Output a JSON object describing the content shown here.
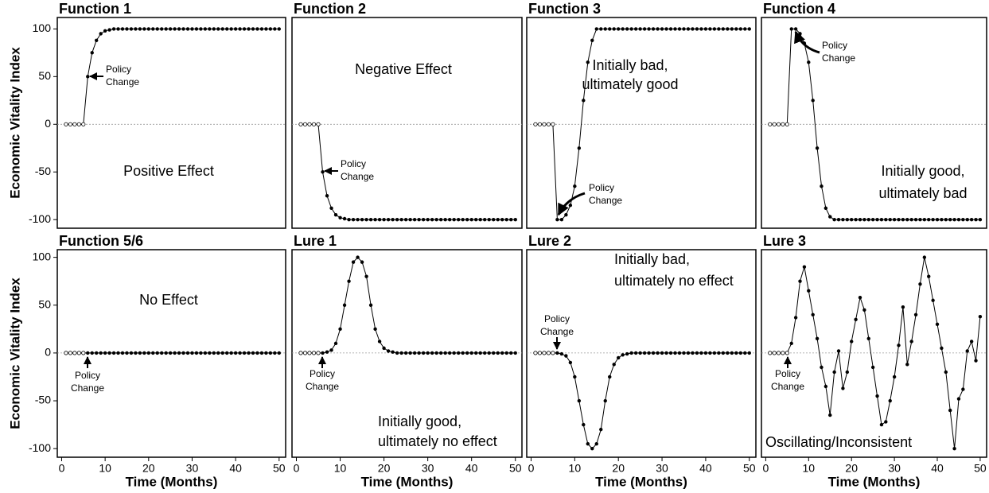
{
  "chart_data": [
    {
      "type": "line",
      "title": "Function 1",
      "ylabel": "Economic Vitality Index",
      "annotation": [
        "Positive Effect"
      ],
      "policy_label": [
        "Policy",
        "Change"
      ],
      "open_markers": 5,
      "x": [
        1,
        2,
        3,
        4,
        5,
        6,
        7,
        8,
        9,
        10,
        11,
        12,
        13,
        14,
        15,
        16,
        17,
        18,
        19,
        20,
        21,
        22,
        23,
        24,
        25,
        26,
        27,
        28,
        29,
        30,
        31,
        32,
        33,
        34,
        35,
        36,
        37,
        38,
        39,
        40,
        41,
        42,
        43,
        44,
        45,
        46,
        47,
        48,
        49,
        50
      ],
      "values": [
        0,
        0,
        0,
        0,
        0,
        50,
        75,
        88,
        95,
        98,
        99,
        100,
        100,
        100,
        100,
        100,
        100,
        100,
        100,
        100,
        100,
        100,
        100,
        100,
        100,
        100,
        100,
        100,
        100,
        100,
        100,
        100,
        100,
        100,
        100,
        100,
        100,
        100,
        100,
        100,
        100,
        100,
        100,
        100,
        100,
        100,
        100,
        100,
        100,
        100
      ],
      "xlim": [
        -1,
        51.5
      ],
      "ylim": [
        -109,
        112
      ],
      "yticks": [
        -100,
        -50,
        0,
        50,
        100
      ],
      "color": "#000000"
    },
    {
      "type": "line",
      "title": "Function 2",
      "annotation": [
        "Negative Effect"
      ],
      "policy_label": [
        "Policy",
        "Change"
      ],
      "open_markers": 5,
      "x": [
        1,
        2,
        3,
        4,
        5,
        6,
        7,
        8,
        9,
        10,
        11,
        12,
        13,
        14,
        15,
        16,
        17,
        18,
        19,
        20,
        21,
        22,
        23,
        24,
        25,
        26,
        27,
        28,
        29,
        30,
        31,
        32,
        33,
        34,
        35,
        36,
        37,
        38,
        39,
        40,
        41,
        42,
        43,
        44,
        45,
        46,
        47,
        48,
        49,
        50
      ],
      "values": [
        0,
        0,
        0,
        0,
        0,
        -50,
        -75,
        -88,
        -95,
        -98,
        -99,
        -100,
        -100,
        -100,
        -100,
        -100,
        -100,
        -100,
        -100,
        -100,
        -100,
        -100,
        -100,
        -100,
        -100,
        -100,
        -100,
        -100,
        -100,
        -100,
        -100,
        -100,
        -100,
        -100,
        -100,
        -100,
        -100,
        -100,
        -100,
        -100,
        -100,
        -100,
        -100,
        -100,
        -100,
        -100,
        -100,
        -100,
        -100,
        -100
      ],
      "xlim": [
        -1,
        51.5
      ],
      "ylim": [
        -109,
        112
      ],
      "color": "#000000"
    },
    {
      "type": "line",
      "title": "Function 3",
      "annotation": [
        "Initially bad,",
        "ultimately good"
      ],
      "policy_label": [
        "Policy",
        "Change"
      ],
      "open_markers": 5,
      "x": [
        1,
        2,
        3,
        4,
        5,
        6,
        7,
        8,
        9,
        10,
        11,
        12,
        13,
        14,
        15,
        16,
        17,
        18,
        19,
        20,
        21,
        22,
        23,
        24,
        25,
        26,
        27,
        28,
        29,
        30,
        31,
        32,
        33,
        34,
        35,
        36,
        37,
        38,
        39,
        40,
        41,
        42,
        43,
        44,
        45,
        46,
        47,
        48,
        49,
        50
      ],
      "values": [
        0,
        0,
        0,
        0,
        0,
        -100,
        -100,
        -95,
        -85,
        -65,
        -25,
        25,
        65,
        88,
        100,
        100,
        100,
        100,
        100,
        100,
        100,
        100,
        100,
        100,
        100,
        100,
        100,
        100,
        100,
        100,
        100,
        100,
        100,
        100,
        100,
        100,
        100,
        100,
        100,
        100,
        100,
        100,
        100,
        100,
        100,
        100,
        100,
        100,
        100,
        100
      ],
      "xlim": [
        -1,
        51.5
      ],
      "ylim": [
        -109,
        112
      ],
      "color": "#000000"
    },
    {
      "type": "line",
      "title": "Function 4",
      "annotation": [
        "Initially good,",
        "ultimately bad"
      ],
      "policy_label": [
        "Policy",
        "Change"
      ],
      "open_markers": 5,
      "x": [
        1,
        2,
        3,
        4,
        5,
        6,
        7,
        8,
        9,
        10,
        11,
        12,
        13,
        14,
        15,
        16,
        17,
        18,
        19,
        20,
        21,
        22,
        23,
        24,
        25,
        26,
        27,
        28,
        29,
        30,
        31,
        32,
        33,
        34,
        35,
        36,
        37,
        38,
        39,
        40,
        41,
        42,
        43,
        44,
        45,
        46,
        47,
        48,
        49,
        50
      ],
      "values": [
        0,
        0,
        0,
        0,
        0,
        100,
        100,
        95,
        85,
        65,
        25,
        -25,
        -65,
        -88,
        -97,
        -100,
        -100,
        -100,
        -100,
        -100,
        -100,
        -100,
        -100,
        -100,
        -100,
        -100,
        -100,
        -100,
        -100,
        -100,
        -100,
        -100,
        -100,
        -100,
        -100,
        -100,
        -100,
        -100,
        -100,
        -100,
        -100,
        -100,
        -100,
        -100,
        -100,
        -100,
        -100,
        -100,
        -100,
        -100
      ],
      "xlim": [
        -1,
        51.5
      ],
      "ylim": [
        -109,
        112
      ],
      "color": "#000000"
    },
    {
      "type": "line",
      "title": "Function 5/6",
      "ylabel": "Economic Vitality Index",
      "xlabel": "Time (Months)",
      "annotation": [
        "No Effect"
      ],
      "policy_label": [
        "Policy",
        "Change"
      ],
      "open_markers": 5,
      "x": [
        1,
        2,
        3,
        4,
        5,
        6,
        7,
        8,
        9,
        10,
        11,
        12,
        13,
        14,
        15,
        16,
        17,
        18,
        19,
        20,
        21,
        22,
        23,
        24,
        25,
        26,
        27,
        28,
        29,
        30,
        31,
        32,
        33,
        34,
        35,
        36,
        37,
        38,
        39,
        40,
        41,
        42,
        43,
        44,
        45,
        46,
        47,
        48,
        49,
        50
      ],
      "values": [
        0,
        0,
        0,
        0,
        0,
        0,
        0,
        0,
        0,
        0,
        0,
        0,
        0,
        0,
        0,
        0,
        0,
        0,
        0,
        0,
        0,
        0,
        0,
        0,
        0,
        0,
        0,
        0,
        0,
        0,
        0,
        0,
        0,
        0,
        0,
        0,
        0,
        0,
        0,
        0,
        0,
        0,
        0,
        0,
        0,
        0,
        0,
        0,
        0,
        0
      ],
      "xlim": [
        -1,
        51.5
      ],
      "ylim": [
        -109,
        108
      ],
      "xticks": [
        0,
        10,
        20,
        30,
        40,
        50
      ],
      "yticks": [
        -100,
        -50,
        0,
        50,
        100
      ],
      "color": "#000000"
    },
    {
      "type": "line",
      "title": "Lure 1",
      "xlabel": "Time (Months)",
      "annotation": [
        "Initially good,",
        "ultimately no effect"
      ],
      "policy_label": [
        "Policy",
        "Change"
      ],
      "open_markers": 5,
      "x": [
        1,
        2,
        3,
        4,
        5,
        6,
        7,
        8,
        9,
        10,
        11,
        12,
        13,
        14,
        15,
        16,
        17,
        18,
        19,
        20,
        21,
        22,
        23,
        24,
        25,
        26,
        27,
        28,
        29,
        30,
        31,
        32,
        33,
        34,
        35,
        36,
        37,
        38,
        39,
        40,
        41,
        42,
        43,
        44,
        45,
        46,
        47,
        48,
        49,
        50
      ],
      "values": [
        0,
        0,
        0,
        0,
        0,
        0,
        1,
        3,
        10,
        25,
        50,
        75,
        95,
        100,
        95,
        80,
        50,
        25,
        12,
        5,
        2,
        1,
        0,
        0,
        0,
        0,
        0,
        0,
        0,
        0,
        0,
        0,
        0,
        0,
        0,
        0,
        0,
        0,
        0,
        0,
        0,
        0,
        0,
        0,
        0,
        0,
        0,
        0,
        0,
        0
      ],
      "xlim": [
        -1,
        51.5
      ],
      "ylim": [
        -109,
        108
      ],
      "xticks": [
        0,
        10,
        20,
        30,
        40,
        50
      ],
      "color": "#000000"
    },
    {
      "type": "line",
      "title": "Lure 2",
      "xlabel": "Time (Months)",
      "annotation": [
        "Initially bad,",
        "ultimately no effect"
      ],
      "policy_label": [
        "Policy",
        "Change"
      ],
      "open_markers": 5,
      "x": [
        1,
        2,
        3,
        4,
        5,
        6,
        7,
        8,
        9,
        10,
        11,
        12,
        13,
        14,
        15,
        16,
        17,
        18,
        19,
        20,
        21,
        22,
        23,
        24,
        25,
        26,
        27,
        28,
        29,
        30,
        31,
        32,
        33,
        34,
        35,
        36,
        37,
        38,
        39,
        40,
        41,
        42,
        43,
        44,
        45,
        46,
        47,
        48,
        49,
        50
      ],
      "values": [
        0,
        0,
        0,
        0,
        0,
        0,
        -1,
        -3,
        -10,
        -25,
        -50,
        -75,
        -95,
        -100,
        -95,
        -80,
        -50,
        -25,
        -12,
        -5,
        -2,
        -1,
        0,
        0,
        0,
        0,
        0,
        0,
        0,
        0,
        0,
        0,
        0,
        0,
        0,
        0,
        0,
        0,
        0,
        0,
        0,
        0,
        0,
        0,
        0,
        0,
        0,
        0,
        0,
        0
      ],
      "xlim": [
        -1,
        51.5
      ],
      "ylim": [
        -109,
        108
      ],
      "xticks": [
        0,
        10,
        20,
        30,
        40,
        50
      ],
      "color": "#000000"
    },
    {
      "type": "line",
      "title": "Lure 3",
      "xlabel": "Time (Months)",
      "annotation": [
        "Oscillating/Inconsistent"
      ],
      "policy_label": [
        "Policy",
        "Change"
      ],
      "open_markers": 5,
      "x": [
        1,
        2,
        3,
        4,
        5,
        6,
        7,
        8,
        9,
        10,
        11,
        12,
        13,
        14,
        15,
        16,
        17,
        18,
        19,
        20,
        21,
        22,
        23,
        24,
        25,
        26,
        27,
        28,
        29,
        30,
        31,
        32,
        33,
        34,
        35,
        36,
        37,
        38,
        39,
        40,
        41,
        42,
        43,
        44,
        45,
        46,
        47,
        48,
        49,
        50
      ],
      "values": [
        0,
        0,
        0,
        0,
        0,
        10,
        37,
        75,
        90,
        65,
        40,
        15,
        -15,
        -35,
        -65,
        -20,
        2,
        -37,
        -20,
        12,
        35,
        58,
        45,
        15,
        -15,
        -45,
        -75,
        -72,
        -50,
        -25,
        8,
        48,
        -12,
        12,
        40,
        72,
        100,
        80,
        55,
        30,
        5,
        -20,
        -60,
        -100,
        -48,
        -38,
        2,
        12,
        -8,
        38
      ],
      "xlim": [
        -1,
        51.5
      ],
      "ylim": [
        -109,
        108
      ],
      "xticks": [
        0,
        10,
        20,
        30,
        40,
        50
      ],
      "color": "#000000"
    }
  ]
}
